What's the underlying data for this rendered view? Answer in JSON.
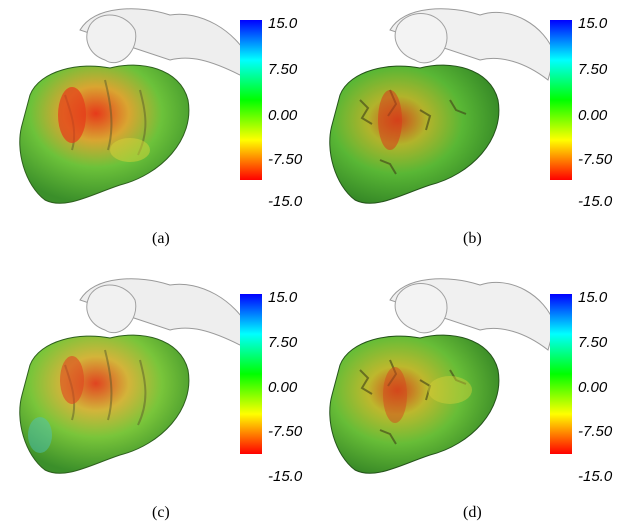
{
  "colors": {
    "scale": [
      "#0000ff",
      "#00ffff",
      "#00ff00",
      "#ffff00",
      "#ff0000"
    ],
    "surface_mesh": "#e6e6e6"
  },
  "panels": [
    {
      "caption": "(a)",
      "ticks": [
        "15.0",
        "7.50",
        "0.00",
        "-7.50",
        "-15.0"
      ]
    },
    {
      "caption": "(b)",
      "ticks": [
        "15.0",
        "7.50",
        "0.00",
        "-7.50",
        "-15.0"
      ]
    },
    {
      "caption": "(c)",
      "ticks": [
        "15.0",
        "7.50",
        "0.00",
        "-7.50",
        "-15.0"
      ]
    },
    {
      "caption": "(d)",
      "ticks": [
        "15.0",
        "7.50",
        "0.00",
        "-7.50",
        "-15.0"
      ]
    }
  ]
}
